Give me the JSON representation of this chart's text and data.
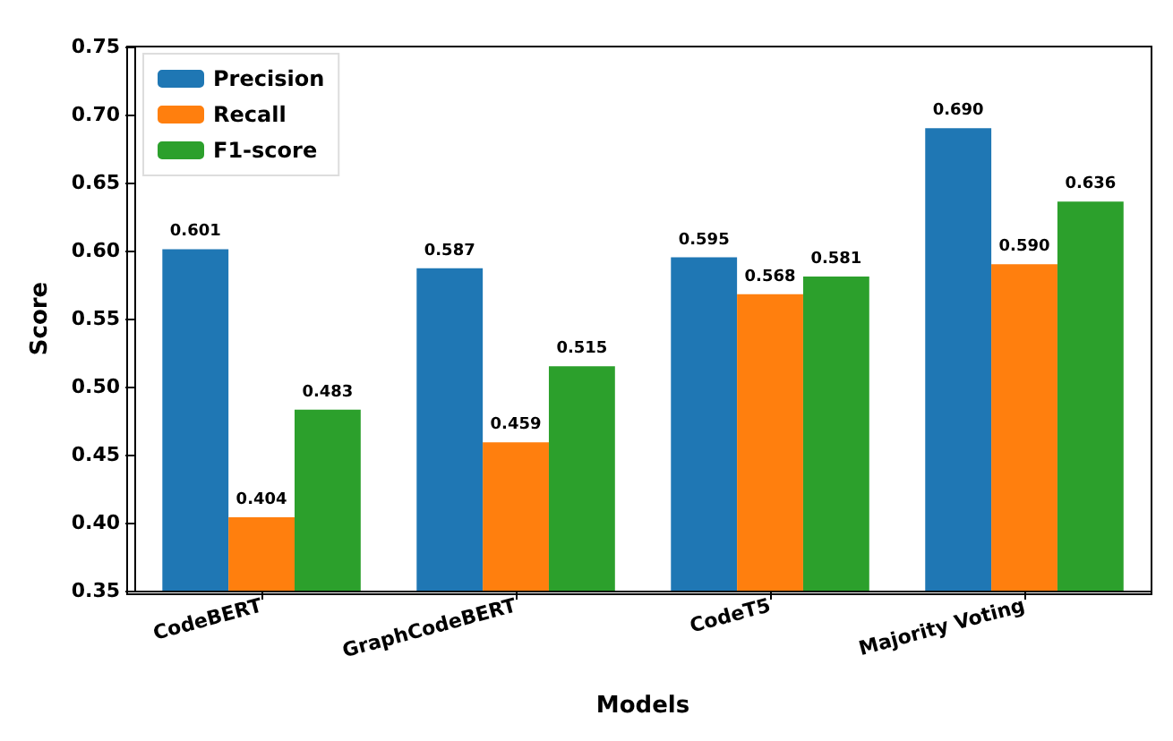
{
  "chart_data": {
    "type": "bar",
    "xlabel": "Models",
    "ylabel": "Score",
    "categories": [
      "CodeBERT",
      "GraphCodeBERT",
      "CodeT5",
      "Majority Voting"
    ],
    "series": [
      {
        "name": "Precision",
        "color": "#1f77b4",
        "values": [
          0.601,
          0.587,
          0.595,
          0.69
        ],
        "value_labels": [
          "0.601",
          "0.587",
          "0.595",
          "0.690"
        ]
      },
      {
        "name": "Recall",
        "color": "#ff7f0e",
        "values": [
          0.404,
          0.459,
          0.568,
          0.59
        ],
        "value_labels": [
          "0.404",
          "0.459",
          "0.568",
          "0.590"
        ]
      },
      {
        "name": "F1-score",
        "color": "#2ca02c",
        "values": [
          0.483,
          0.515,
          0.581,
          0.636
        ],
        "value_labels": [
          "0.483",
          "0.515",
          "0.581",
          "0.636"
        ]
      }
    ],
    "ylim": [
      0.35,
      0.75
    ],
    "yticks": [
      0.35,
      {
        "value": 0.4,
        "label": "0.40"
      },
      0.45,
      {
        "value": 0.5,
        "label": "0.50"
      },
      0.55,
      {
        "value": 0.6,
        "label": "0.60"
      },
      0.65,
      {
        "value": 0.7,
        "label": "0.70"
      },
      0.75
    ],
    "legend": "top left",
    "grid": false
  }
}
